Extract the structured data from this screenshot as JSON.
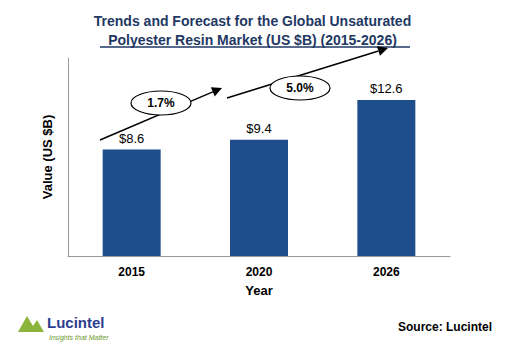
{
  "chart_data": {
    "type": "bar",
    "title": "Trends and Forecast for the Global Unsaturated\nPolyester Resin Market (US $B) (2015-2026)",
    "xlabel": "Year",
    "ylabel": "Value (US $B)",
    "categories": [
      "2015",
      "2020",
      "2026"
    ],
    "values": [
      8.6,
      9.4,
      12.6
    ],
    "value_labels": [
      "$8.6",
      "$9.4",
      "$12.6"
    ],
    "data_labels": true,
    "color": "#1f4e8c",
    "ylim": [
      0,
      16
    ],
    "tick_labels": "x",
    "grid": false,
    "annotations": [
      "1.7%",
      "5.0%"
    ],
    "source": "Source: Lucintel",
    "logo": {
      "name": "Lucintel",
      "tagline": "Insights that Matter"
    }
  }
}
